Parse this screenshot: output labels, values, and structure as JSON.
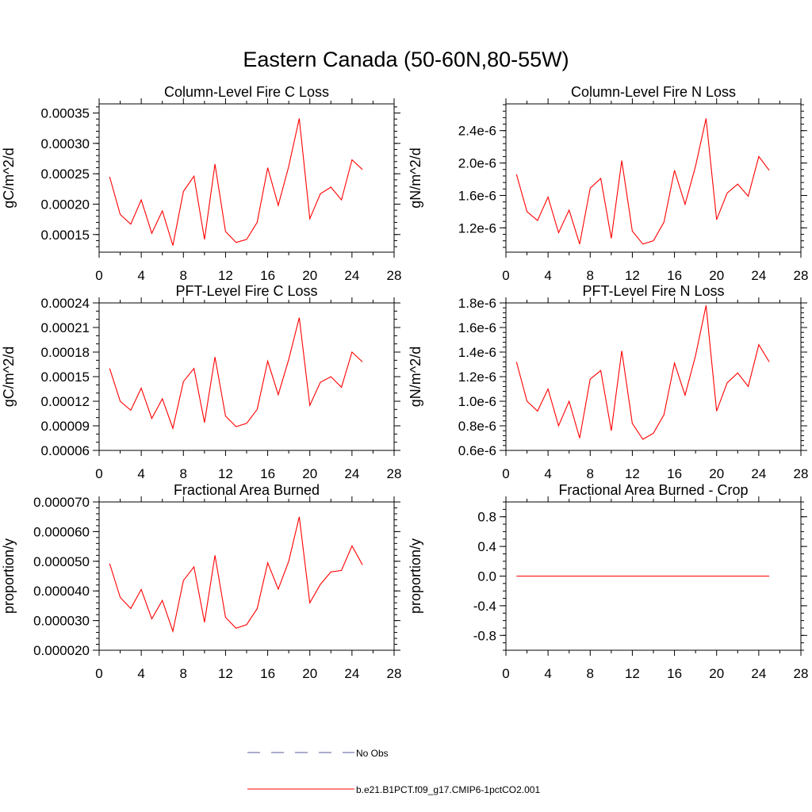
{
  "page": {
    "title": "Eastern Canada (50-60N,80-55W)"
  },
  "colors": {
    "model_line": "#ff0000",
    "obs_line": "#5a5aa0",
    "axis": "#000000"
  },
  "legend": {
    "entries": [
      {
        "label": "No Obs",
        "style": "dashed",
        "color": "#5a5aa0"
      },
      {
        "label": "b.e21.B1PCT.f09_g17.CMIP6-1pctCO2.001",
        "style": "solid",
        "color": "#ff0000"
      }
    ]
  },
  "chart_data": [
    {
      "type": "line",
      "title": "Column-Level Fire C Loss",
      "ylabel": "gC/m^2/d",
      "xlim": [
        0,
        28
      ],
      "ylim": [
        0.000121,
        0.000365
      ],
      "xticks": [
        0,
        4,
        8,
        12,
        16,
        20,
        24,
        28
      ],
      "xticklabels": [
        "0",
        "4",
        "8",
        "12",
        "16",
        "20",
        "24",
        "28"
      ],
      "yticks": [
        0.00015,
        0.0002,
        0.00025,
        0.0003,
        0.00035
      ],
      "yticklabels": [
        "0.00015",
        "0.00020",
        "0.00025",
        "0.00030",
        "0.00035"
      ],
      "yminor": 1e-05,
      "x": [
        1,
        2,
        3,
        4,
        5,
        6,
        7,
        8,
        9,
        10,
        11,
        12,
        13,
        14,
        15,
        16,
        17,
        18,
        19,
        20,
        21,
        22,
        23,
        24,
        25
      ],
      "series": [
        {
          "name": "b.e21.B1PCT.f09_g17.CMIP6-1pctCO2.001",
          "values": [
            0.000245,
            0.000183,
            0.000167,
            0.000207,
            0.000152,
            0.000189,
            0.000132,
            0.000221,
            0.000246,
            0.000142,
            0.000266,
            0.000155,
            0.000137,
            0.000142,
            0.00017,
            0.00026,
            0.000198,
            0.000262,
            0.000341,
            0.000176,
            0.000217,
            0.000228,
            0.000207,
            0.000273,
            0.000257
          ]
        }
      ]
    },
    {
      "type": "line",
      "title": "Column-Level Fire N Loss",
      "ylabel": "gN/m^2/d",
      "xlim": [
        0,
        28
      ],
      "ylim": [
        9e-07,
        2.73e-06
      ],
      "xticks": [
        0,
        4,
        8,
        12,
        16,
        20,
        24,
        28
      ],
      "xticklabels": [
        "0",
        "4",
        "8",
        "12",
        "16",
        "20",
        "24",
        "28"
      ],
      "yticks": [
        1.2e-06,
        1.6e-06,
        2e-06,
        2.4e-06
      ],
      "yticklabels": [
        "1.2e-6",
        "1.6e-6",
        "2.0e-6",
        "2.4e-6"
      ],
      "yminor": 8e-08,
      "x": [
        1,
        2,
        3,
        4,
        5,
        6,
        7,
        8,
        9,
        10,
        11,
        12,
        13,
        14,
        15,
        16,
        17,
        18,
        19,
        20,
        21,
        22,
        23,
        24,
        25
      ],
      "series": [
        {
          "name": "b.e21.B1PCT.f09_g17.CMIP6-1pctCO2.001",
          "values": [
            1.86e-06,
            1.4e-06,
            1.29e-06,
            1.58e-06,
            1.14e-06,
            1.42e-06,
            1e-06,
            1.69e-06,
            1.81e-06,
            1.07e-06,
            2.03e-06,
            1.16e-06,
            1e-06,
            1.04e-06,
            1.27e-06,
            1.91e-06,
            1.49e-06,
            1.96e-06,
            2.55e-06,
            1.3e-06,
            1.63e-06,
            1.74e-06,
            1.59e-06,
            2.08e-06,
            1.91e-06
          ]
        }
      ]
    },
    {
      "type": "line",
      "title": "PFT-Level Fire C Loss",
      "ylabel": "gC/m^2/d",
      "xlim": [
        0,
        28
      ],
      "ylim": [
        6e-05,
        0.00024
      ],
      "xticks": [
        0,
        4,
        8,
        12,
        16,
        20,
        24,
        28
      ],
      "xticklabels": [
        "0",
        "4",
        "8",
        "12",
        "16",
        "20",
        "24",
        "28"
      ],
      "yticks": [
        6e-05,
        9e-05,
        0.00012,
        0.00015,
        0.00018,
        0.00021,
        0.00024
      ],
      "yticklabels": [
        "0.00006",
        "0.00009",
        "0.00012",
        "0.00015",
        "0.00018",
        "0.00021",
        "0.00024"
      ],
      "yminor": 1e-05,
      "x": [
        1,
        2,
        3,
        4,
        5,
        6,
        7,
        8,
        9,
        10,
        11,
        12,
        13,
        14,
        15,
        16,
        17,
        18,
        19,
        20,
        21,
        22,
        23,
        24,
        25
      ],
      "series": [
        {
          "name": "b.e21.B1PCT.f09_g17.CMIP6-1pctCO2.001",
          "values": [
            0.00016,
            0.00012,
            0.000109,
            0.000136,
            9.9e-05,
            0.000123,
            8.7e-05,
            0.000144,
            0.00016,
            9.4e-05,
            0.000174,
            0.000102,
            8.9e-05,
            9.3e-05,
            0.00011,
            0.000169,
            0.000128,
            0.000171,
            0.000222,
            0.000115,
            0.000143,
            0.00015,
            0.000137,
            0.00018,
            0.000168
          ]
        }
      ]
    },
    {
      "type": "line",
      "title": "PFT-Level Fire N Loss",
      "ylabel": "gN/m^2/d",
      "xlim": [
        0,
        28
      ],
      "ylim": [
        6e-07,
        1.8e-06
      ],
      "xticks": [
        0,
        4,
        8,
        12,
        16,
        20,
        24,
        28
      ],
      "xticklabels": [
        "0",
        "4",
        "8",
        "12",
        "16",
        "20",
        "24",
        "28"
      ],
      "yticks": [
        6e-07,
        8e-07,
        1e-06,
        1.2e-06,
        1.4e-06,
        1.6e-06,
        1.8e-06
      ],
      "yticklabels": [
        "0.6e-6",
        "0.8e-6",
        "1.0e-6",
        "1.2e-6",
        "1.4e-6",
        "1.6e-6",
        "1.8e-6"
      ],
      "yminor": 4e-08,
      "x": [
        1,
        2,
        3,
        4,
        5,
        6,
        7,
        8,
        9,
        10,
        11,
        12,
        13,
        14,
        15,
        16,
        17,
        18,
        19,
        20,
        21,
        22,
        23,
        24,
        25
      ],
      "series": [
        {
          "name": "b.e21.B1PCT.f09_g17.CMIP6-1pctCO2.001",
          "values": [
            1.32e-06,
            1e-06,
            9.2e-07,
            1.1e-06,
            8e-07,
            1e-06,
            7e-07,
            1.18e-06,
            1.25e-06,
            7.6e-07,
            1.41e-06,
            8.2e-07,
            6.9e-07,
            7.4e-07,
            8.9e-07,
            1.31e-06,
            1.05e-06,
            1.37e-06,
            1.78e-06,
            9.2e-07,
            1.15e-06,
            1.23e-06,
            1.12e-06,
            1.46e-06,
            1.32e-06
          ]
        }
      ]
    },
    {
      "type": "line",
      "title": "Fractional Area Burned",
      "ylabel": "proportion/y",
      "xlim": [
        0,
        28
      ],
      "ylim": [
        2e-05,
        7e-05
      ],
      "xticks": [
        0,
        4,
        8,
        12,
        16,
        20,
        24,
        28
      ],
      "xticklabels": [
        "0",
        "4",
        "8",
        "12",
        "16",
        "20",
        "24",
        "28"
      ],
      "yticks": [
        2e-05,
        3e-05,
        4e-05,
        5e-05,
        6e-05,
        7e-05
      ],
      "yticklabels": [
        "0.000020",
        "0.000030",
        "0.000040",
        "0.000050",
        "0.000060",
        "0.000070"
      ],
      "yminor": 2e-06,
      "x": [
        1,
        2,
        3,
        4,
        5,
        6,
        7,
        8,
        9,
        10,
        11,
        12,
        13,
        14,
        15,
        16,
        17,
        18,
        19,
        20,
        21,
        22,
        23,
        24,
        25
      ],
      "series": [
        {
          "name": "b.e21.B1PCT.f09_g17.CMIP6-1pctCO2.001",
          "values": [
            4.92e-05,
            3.78e-05,
            3.41e-05,
            4.05e-05,
            3.06e-05,
            3.68e-05,
            2.64e-05,
            4.35e-05,
            4.81e-05,
            2.94e-05,
            5.2e-05,
            3.11e-05,
            2.74e-05,
            2.86e-05,
            3.4e-05,
            4.95e-05,
            4.06e-05,
            5e-05,
            6.5e-05,
            3.6e-05,
            4.22e-05,
            4.64e-05,
            4.69e-05,
            5.52e-05,
            4.88e-05
          ]
        }
      ]
    },
    {
      "type": "line",
      "title": "Fractional Area Burned - Crop",
      "ylabel": "proportion/y",
      "xlim": [
        0,
        28
      ],
      "ylim": [
        -1.0,
        1.0
      ],
      "xticks": [
        0,
        4,
        8,
        12,
        16,
        20,
        24,
        28
      ],
      "xticklabels": [
        "0",
        "4",
        "8",
        "12",
        "16",
        "20",
        "24",
        "28"
      ],
      "yticks": [
        -0.8,
        -0.4,
        0.0,
        0.4,
        0.8
      ],
      "yticklabels": [
        "-0.8",
        "-0.4",
        "0.0",
        "0.4",
        "0.8"
      ],
      "yminor": 0.1,
      "x": [
        1,
        2,
        3,
        4,
        5,
        6,
        7,
        8,
        9,
        10,
        11,
        12,
        13,
        14,
        15,
        16,
        17,
        18,
        19,
        20,
        21,
        22,
        23,
        24,
        25
      ],
      "series": [
        {
          "name": "b.e21.B1PCT.f09_g17.CMIP6-1pctCO2.001",
          "values": [
            0,
            0,
            0,
            0,
            0,
            0,
            0,
            0,
            0,
            0,
            0,
            0,
            0,
            0,
            0,
            0,
            0,
            0,
            0,
            0,
            0,
            0,
            0,
            0,
            0
          ]
        }
      ]
    }
  ]
}
